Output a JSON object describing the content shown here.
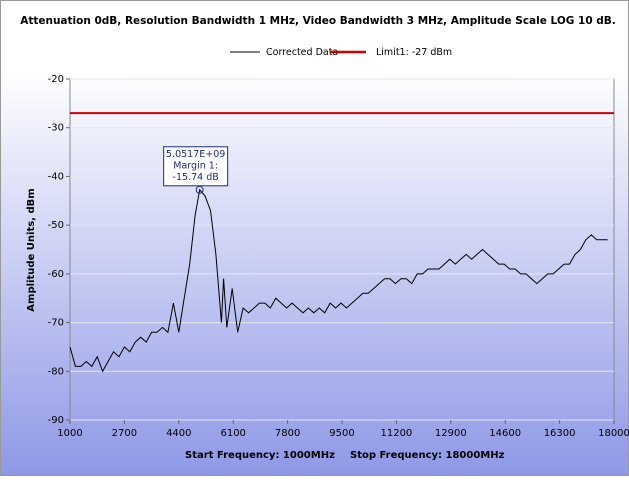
{
  "chart_data": {
    "type": "line",
    "title": "Attenuation 0dB, Resolution Bandwidth 1 MHz, Video Bandwidth 3 MHz, Amplitude Scale LOG 10 dB.",
    "ylabel": "Amplitude Units, dBm",
    "footer": [
      "Start Frequency: 1000MHz",
      "Stop Frequency: 18000MHz"
    ],
    "xlim": [
      1000,
      18000
    ],
    "xticks": [
      1000,
      2700,
      4400,
      6100,
      7800,
      9500,
      11200,
      12900,
      14600,
      16300,
      18000
    ],
    "ylim": [
      -90,
      -20
    ],
    "yticks": [
      -90,
      -80,
      -70,
      -60,
      -50,
      -40,
      -30,
      -20
    ],
    "series": [
      {
        "name": "Corrected Data",
        "color": "#000000",
        "x": [
          1000,
          1170,
          1340,
          1510,
          1680,
          1850,
          2020,
          2190,
          2360,
          2530,
          2700,
          2870,
          3040,
          3210,
          3380,
          3550,
          3720,
          3890,
          4060,
          4230,
          4400,
          4570,
          4740,
          4910,
          5051.7,
          5220,
          5390,
          5560,
          5730,
          5800,
          5900,
          6070,
          6240,
          6410,
          6580,
          6750,
          6920,
          7090,
          7260,
          7430,
          7600,
          7770,
          7940,
          8110,
          8280,
          8450,
          8620,
          8790,
          8960,
          9130,
          9300,
          9470,
          9640,
          9810,
          9980,
          10150,
          10320,
          10490,
          10660,
          10830,
          11000,
          11170,
          11340,
          11510,
          11680,
          11850,
          12020,
          12190,
          12360,
          12530,
          12700,
          12870,
          13040,
          13210,
          13380,
          13550,
          13720,
          13890,
          14060,
          14230,
          14400,
          14570,
          14740,
          14910,
          15080,
          15250,
          15420,
          15590,
          15760,
          15930,
          16100,
          16270,
          16440,
          16610,
          16780,
          16950,
          17120,
          17290,
          17460,
          17630,
          17800
        ],
        "values": [
          -75,
          -79,
          -79,
          -78,
          -79,
          -77,
          -80,
          -78,
          -76,
          -77,
          -75,
          -76,
          -74,
          -73,
          -74,
          -72,
          -72,
          -71,
          -72,
          -66,
          -72,
          -65,
          -58,
          -48,
          -42.74,
          -44,
          -47,
          -56,
          -70,
          -61,
          -71,
          -63,
          -72,
          -67,
          -68,
          -67,
          -66,
          -66,
          -67,
          -65,
          -66,
          -67,
          -66,
          -67,
          -68,
          -67,
          -68,
          -67,
          -68,
          -66,
          -67,
          -66,
          -67,
          -66,
          -65,
          -64,
          -64,
          -63,
          -62,
          -61,
          -61,
          -62,
          -61,
          -61,
          -62,
          -60,
          -60,
          -59,
          -59,
          -59,
          -58,
          -57,
          -58,
          -57,
          -56,
          -57,
          -56,
          -55,
          -56,
          -57,
          -58,
          -58,
          -59,
          -59,
          -60,
          -60,
          -61,
          -62,
          -61,
          -60,
          -60,
          -59,
          -58,
          -58,
          -56,
          -55,
          -53,
          -52,
          -53,
          -53,
          -53
        ]
      },
      {
        "name": "Limit1: -27 dBm",
        "color": "#cc0000",
        "x": [
          1000,
          18000
        ],
        "values": [
          -27,
          -27
        ]
      }
    ],
    "marker": {
      "x": 5051.7,
      "y": -42.74,
      "label": [
        "5.0517E+09",
        "Margin 1:",
        "-15.74 dB"
      ]
    }
  }
}
